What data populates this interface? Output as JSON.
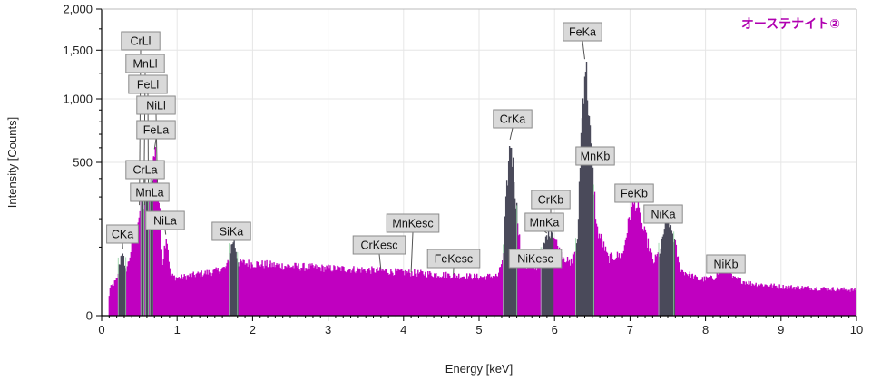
{
  "chart_data": {
    "type": "area",
    "title": "",
    "annotation": "オーステナイト②",
    "xlabel": "Energy [keV]",
    "ylabel": "Intensity [Counts]",
    "xlim": [
      0,
      10
    ],
    "ylim": [
      0,
      2000
    ],
    "y_scale": "sqrt",
    "grid": true,
    "x_ticks": [
      "0",
      "1",
      "2",
      "3",
      "4",
      "5",
      "6",
      "7",
      "8",
      "9",
      "10"
    ],
    "y_ticks": [
      {
        "value": 0,
        "label": "0"
      },
      {
        "value": 500,
        "label": "500"
      },
      {
        "value": 1000,
        "label": "1,000"
      },
      {
        "value": 1500,
        "label": "1,500"
      },
      {
        "value": 2000,
        "label": "2,000"
      }
    ],
    "spectrum_points": [
      [
        0.08,
        0
      ],
      [
        0.1,
        15
      ],
      [
        0.2,
        28
      ],
      [
        0.27,
        95
      ],
      [
        0.3,
        40
      ],
      [
        0.35,
        60
      ],
      [
        0.45,
        160
      ],
      [
        0.52,
        260
      ],
      [
        0.58,
        280
      ],
      [
        0.64,
        340
      ],
      [
        0.7,
        590
      ],
      [
        0.76,
        230
      ],
      [
        0.8,
        60
      ],
      [
        0.85,
        140
      ],
      [
        0.9,
        35
      ],
      [
        1.0,
        30
      ],
      [
        1.2,
        35
      ],
      [
        1.5,
        42
      ],
      [
        1.65,
        50
      ],
      [
        1.74,
        125
      ],
      [
        1.8,
        60
      ],
      [
        2.0,
        58
      ],
      [
        2.5,
        52
      ],
      [
        3.0,
        48
      ],
      [
        3.5,
        45
      ],
      [
        4.0,
        40
      ],
      [
        4.5,
        36
      ],
      [
        5.0,
        32
      ],
      [
        5.25,
        34
      ],
      [
        5.32,
        80
      ],
      [
        5.41,
        660
      ],
      [
        5.48,
        280
      ],
      [
        5.55,
        60
      ],
      [
        5.7,
        45
      ],
      [
        5.8,
        55
      ],
      [
        5.9,
        145
      ],
      [
        5.95,
        160
      ],
      [
        6.05,
        90
      ],
      [
        6.2,
        55
      ],
      [
        6.3,
        110
      ],
      [
        6.4,
        1400
      ],
      [
        6.48,
        520
      ],
      [
        6.55,
        160
      ],
      [
        6.7,
        70
      ],
      [
        6.9,
        80
      ],
      [
        7.0,
        220
      ],
      [
        7.06,
        285
      ],
      [
        7.15,
        170
      ],
      [
        7.3,
        60
      ],
      [
        7.4,
        90
      ],
      [
        7.48,
        215
      ],
      [
        7.55,
        150
      ],
      [
        7.65,
        45
      ],
      [
        7.9,
        28
      ],
      [
        8.1,
        30
      ],
      [
        8.26,
        55
      ],
      [
        8.35,
        30
      ],
      [
        8.6,
        22
      ],
      [
        9.0,
        18
      ],
      [
        9.5,
        16
      ],
      [
        10.0,
        14
      ]
    ],
    "highlight_bands": [
      [
        0.22,
        0.32
      ],
      [
        0.52,
        0.56
      ],
      [
        0.58,
        0.62
      ],
      [
        0.64,
        0.67
      ],
      [
        1.69,
        1.8
      ],
      [
        5.32,
        5.5
      ],
      [
        5.82,
        5.98
      ],
      [
        6.28,
        6.52
      ],
      [
        7.38,
        7.58
      ]
    ],
    "peak_labels": [
      {
        "text": "CKa",
        "energy": 0.28,
        "counts": 95
      },
      {
        "text": "CrLl",
        "energy": 0.5,
        "counts": 260
      },
      {
        "text": "MnLl",
        "energy": 0.56,
        "counts": 280
      },
      {
        "text": "FeLl",
        "energy": 0.62,
        "counts": 300
      },
      {
        "text": "NiLl",
        "energy": 0.74,
        "counts": 330
      },
      {
        "text": "FeLa",
        "energy": 0.7,
        "counts": 590
      },
      {
        "text": "CrLa",
        "energy": 0.57,
        "counts": 260
      },
      {
        "text": "MnLa",
        "energy": 0.64,
        "counts": 300
      },
      {
        "text": "NiLa",
        "energy": 0.85,
        "counts": 140
      },
      {
        "text": "SiKa",
        "energy": 1.74,
        "counts": 125
      },
      {
        "text": "CrKesc",
        "energy": 3.7,
        "counts": 45
      },
      {
        "text": "MnKesc",
        "energy": 4.1,
        "counts": 40
      },
      {
        "text": "FeKesc",
        "energy": 4.66,
        "counts": 36
      },
      {
        "text": "CrKa",
        "energy": 5.41,
        "counts": 660
      },
      {
        "text": "CrKb",
        "energy": 5.95,
        "counts": 160
      },
      {
        "text": "MnKa",
        "energy": 5.9,
        "counts": 145
      },
      {
        "text": "NiKesc",
        "energy": 5.99,
        "counts": 55
      },
      {
        "text": "FeKa",
        "energy": 6.4,
        "counts": 1400
      },
      {
        "text": "MnKb",
        "energy": 6.49,
        "counts": 520
      },
      {
        "text": "FeKb",
        "energy": 7.06,
        "counts": 285
      },
      {
        "text": "NiKa",
        "energy": 7.48,
        "counts": 215
      },
      {
        "text": "NiKb",
        "energy": 8.26,
        "counts": 55
      }
    ],
    "colors": {
      "spectrum": "#c000c0",
      "highlight": "#4a4a5a",
      "label_box": "#d9d9d9",
      "label_border": "#8a8a8a",
      "annotation": "#b000b0",
      "grid": "#e6e6e6",
      "axis": "#000000"
    }
  }
}
